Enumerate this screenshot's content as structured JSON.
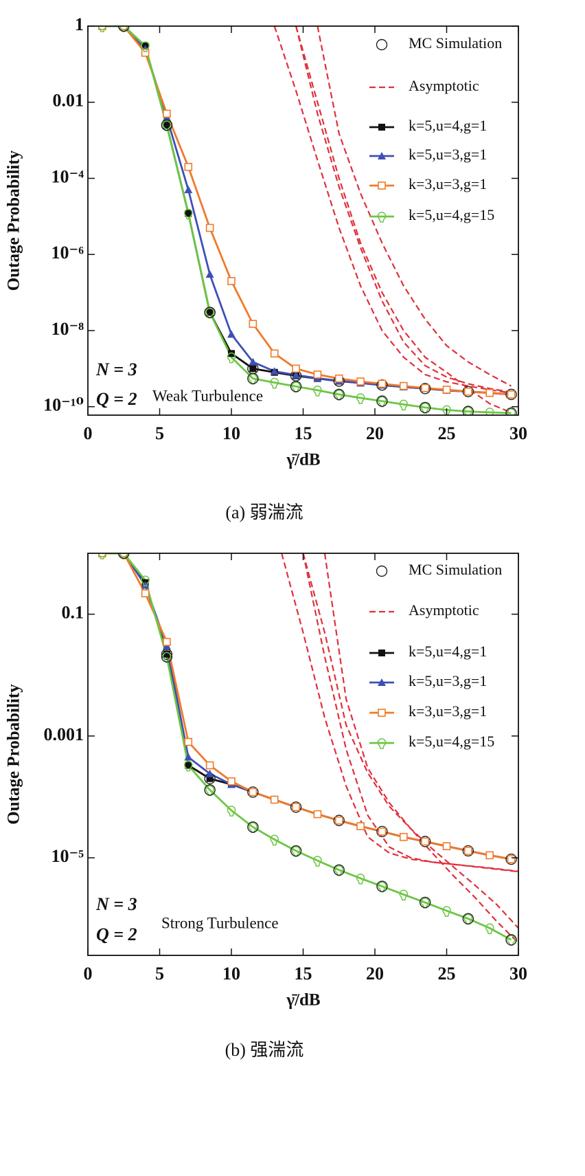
{
  "chart_data": [
    {
      "type": "line",
      "log_y": true,
      "ylabel": "Outage Probability",
      "xlabel": "γ̄/dB",
      "caption": "(a)  弱湍流",
      "annotations": [
        "N = 3",
        "Q = 2",
        "Weak Turbulence"
      ],
      "xlim": [
        0,
        30
      ],
      "xticks": [
        0,
        5,
        10,
        15,
        20,
        25,
        30
      ],
      "ylim": [
        6e-11,
        1
      ],
      "yticks": [
        1,
        0.01,
        {
          "value": 0.0001,
          "label": "10⁻⁴"
        },
        {
          "value": 1e-06,
          "label": "10⁻⁶"
        },
        {
          "value": 1e-08,
          "label": "10⁻⁸"
        },
        {
          "value": 1e-10,
          "label": "10⁻¹⁰"
        }
      ],
      "simulation_legend": "MC Simulation",
      "x": [
        1,
        2.5,
        4,
        5.5,
        7,
        8.5,
        10,
        11.5,
        13,
        14.5,
        16,
        17.5,
        19,
        20.5,
        22,
        23.5,
        25,
        26.5,
        28,
        29.5
      ],
      "series": [
        {
          "name": "k=5,u=4,g=1",
          "color": "#111111",
          "marker": "square-filled",
          "values": [
            1,
            1,
            0.3,
            0.0025,
            1.2e-05,
            3e-08,
            2.5e-09,
            1e-09,
            8e-10,
            6.5e-10,
            5.5e-10,
            4.7e-10,
            4.2e-10,
            3.7e-10,
            3.3e-10,
            3e-10,
            2.7e-10,
            2.5e-10,
            2.3e-10,
            2.1e-10
          ]
        },
        {
          "name": "k=5,u=3,g=1",
          "color": "#3f4fb8",
          "marker": "triangle",
          "values": [
            1,
            1,
            0.25,
            0.004,
            5e-05,
            3e-07,
            8e-09,
            1.5e-09,
            8.5e-10,
            6.8e-10,
            5.6e-10,
            4.8e-10,
            4.2e-10,
            3.7e-10,
            3.3e-10,
            3e-10,
            2.7e-10,
            2.5e-10,
            2.3e-10,
            2.1e-10
          ]
        },
        {
          "name": "k=3,u=3,g=1",
          "color": "#f07a2a",
          "marker": "square-open",
          "values": [
            1,
            1,
            0.2,
            0.005,
            0.0002,
            5e-06,
            2e-07,
            1.5e-08,
            2.5e-09,
            1e-09,
            7e-10,
            5.5e-10,
            4.6e-10,
            4e-10,
            3.5e-10,
            3.1e-10,
            2.8e-10,
            2.5e-10,
            2.3e-10,
            2.1e-10
          ]
        },
        {
          "name": "k=5,u=4,g=15",
          "color": "#6cc644",
          "marker": "bulb",
          "values": [
            1,
            1,
            0.3,
            0.0025,
            1.2e-05,
            3e-08,
            2e-09,
            5.5e-10,
            4.3e-10,
            3.4e-10,
            2.7e-10,
            2.1e-10,
            1.7e-10,
            1.4e-10,
            1.15e-10,
            9.5e-11,
            8.2e-11,
            7.5e-11,
            7.1e-11,
            6.8e-11
          ]
        }
      ],
      "asymptotic": {
        "name": "Asymptotic",
        "color": "#e0303c",
        "x": [
          13,
          14.5,
          16,
          17.5,
          19,
          20.5,
          22,
          23.5,
          25,
          26.5,
          28,
          29.5
        ],
        "curves": [
          [
            1,
            0.02,
            0.0003,
            5e-06,
            1.5e-07,
            1e-08,
            2e-09,
            7e-10,
            4.5e-10,
            3.5e-10,
            2.8e-10,
            2.3e-10
          ],
          [
            null,
            1,
            0.005,
            6e-05,
            1.5e-06,
            6e-08,
            5e-09,
            1.2e-09,
            6e-10,
            4e-10,
            3e-10,
            2.4e-10
          ],
          [
            null,
            1,
            0.01,
            0.0001,
            2e-06,
            1e-07,
            1e-08,
            2e-09,
            8e-10,
            3e-10,
            1.2e-10,
            7e-11
          ],
          [
            null,
            null,
            1,
            0.0015,
            4e-05,
            2e-06,
            1.5e-07,
            2e-08,
            4e-09,
            1.5e-09,
            7e-10,
            3.5e-10
          ]
        ]
      }
    },
    {
      "type": "line",
      "log_y": true,
      "ylabel": "Outage Probability",
      "xlabel": "γ̄/dB",
      "caption": "(b)  强湍流",
      "annotations": [
        "N = 3",
        "Q = 2",
        "Strong Turbulence"
      ],
      "xlim": [
        0,
        30
      ],
      "xticks": [
        0,
        5,
        10,
        15,
        20,
        25,
        30
      ],
      "ylim": [
        2.5e-07,
        1
      ],
      "yticks": [
        0.1,
        0.001,
        {
          "value": 1e-05,
          "label": "10⁻⁵"
        }
      ],
      "simulation_legend": "MC Simulation",
      "x": [
        1,
        2.5,
        4,
        5.5,
        7,
        8.5,
        10,
        11.5,
        13,
        14.5,
        16,
        17.5,
        19,
        20.5,
        22,
        23.5,
        25,
        26.5,
        28,
        29.5
      ],
      "series": [
        {
          "name": "k=5,u=4,g=1",
          "color": "#111111",
          "marker": "square-filled",
          "values": [
            1,
            1,
            0.33,
            0.022,
            0.00033,
            0.0002,
            0.00016,
            0.00012,
            9e-05,
            6.8e-05,
            5.2e-05,
            4.1e-05,
            3.3e-05,
            2.7e-05,
            2.2e-05,
            1.85e-05,
            1.55e-05,
            1.3e-05,
            1.1e-05,
            9.5e-06
          ]
        },
        {
          "name": "k=5,u=3,g=1",
          "color": "#3f4fb8",
          "marker": "triangle",
          "values": [
            1,
            1,
            0.3,
            0.03,
            0.00045,
            0.00024,
            0.00016,
            0.00012,
            9e-05,
            6.8e-05,
            5.2e-05,
            4.1e-05,
            3.3e-05,
            2.7e-05,
            2.2e-05,
            1.85e-05,
            1.55e-05,
            1.3e-05,
            1.1e-05,
            9.5e-06
          ]
        },
        {
          "name": "k=3,u=3,g=1",
          "color": "#f07a2a",
          "marker": "square-open",
          "values": [
            1,
            1,
            0.22,
            0.035,
            0.0008,
            0.00033,
            0.00018,
            0.00012,
            9e-05,
            6.8e-05,
            5.2e-05,
            4.1e-05,
            3.3e-05,
            2.7e-05,
            2.2e-05,
            1.85e-05,
            1.55e-05,
            1.3e-05,
            1.1e-05,
            9.5e-06
          ]
        },
        {
          "name": "k=5,u=4,g=15",
          "color": "#6cc644",
          "marker": "bulb",
          "values": [
            1,
            1,
            0.36,
            0.02,
            0.00033,
            0.00013,
            6e-05,
            3.2e-05,
            2e-05,
            1.3e-05,
            9e-06,
            6.3e-06,
            4.6e-06,
            3.4e-06,
            2.5e-06,
            1.85e-06,
            1.35e-06,
            1e-06,
            7e-07,
            4.5e-07
          ]
        }
      ],
      "asymptotic": {
        "name": "Asymptotic",
        "color": "#e0303c",
        "x": [
          13.5,
          15,
          16.5,
          18,
          19.5,
          21,
          22.5,
          24,
          25.5,
          27,
          28.5,
          30
        ],
        "curves": [
          [
            1,
            0.05,
            0.002,
            0.00015,
            2.2e-05,
            1.2e-05,
            9.5e-06,
            8.5e-06,
            7.8e-06,
            7.2e-06,
            6.6e-06,
            6e-06
          ],
          [
            null,
            1,
            0.02,
            0.0006,
            5e-05,
            1.5e-05,
            1e-05,
            8.5e-06,
            7.8e-06,
            7.1e-06,
            6.5e-06,
            5.9e-06
          ],
          [
            null,
            1,
            0.05,
            0.0015,
            0.00025,
            7e-05,
            3e-05,
            1.4e-05,
            7e-06,
            3.5e-06,
            1.7e-06,
            7e-07
          ],
          [
            null,
            null,
            1,
            0.004,
            0.0003,
            8e-05,
            3e-05,
            1.2e-05,
            5e-06,
            2.2e-06,
            9e-07,
            4e-07
          ]
        ]
      }
    }
  ]
}
